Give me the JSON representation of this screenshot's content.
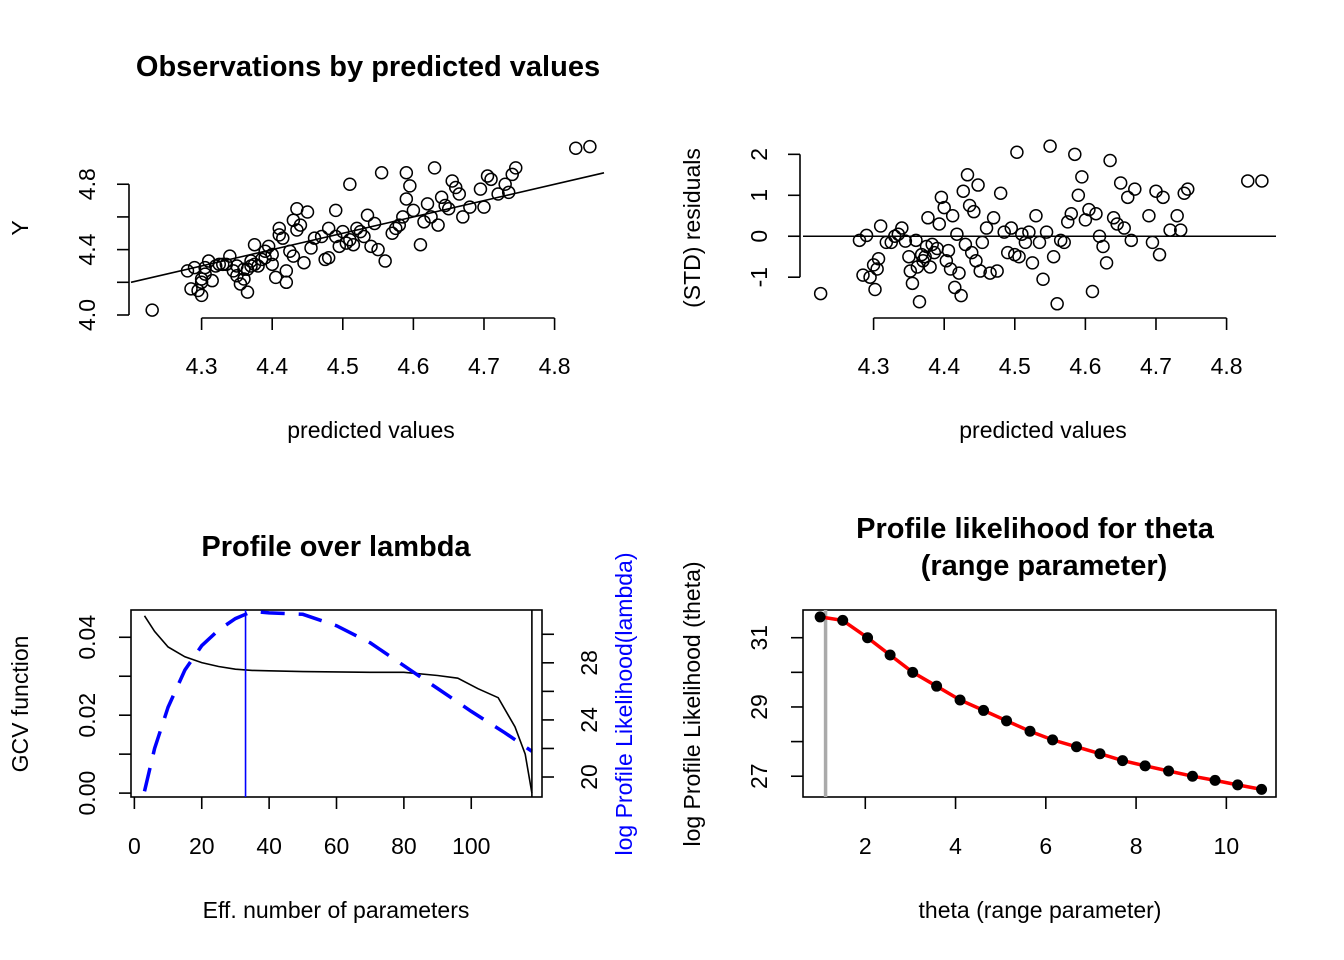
{
  "chart_data": [
    {
      "type": "scatter",
      "title": "Observations by predicted values",
      "xlabel": "predicted values",
      "ylabel": "Y",
      "xlim": [
        4.2,
        4.87
      ],
      "ylim": [
        4.0,
        5.04
      ],
      "xticks": [
        4.3,
        4.4,
        4.5,
        4.6,
        4.7,
        4.8
      ],
      "xtick_labels": [
        "4.3",
        "4.4",
        "4.5",
        "4.6",
        "4.7",
        "4.8"
      ],
      "yticks": [
        4.0,
        4.2,
        4.4,
        4.6,
        4.8
      ],
      "ytick_labels": [
        "4.0",
        "",
        "4.4",
        "",
        "4.8"
      ],
      "reference_line": {
        "type": "identity",
        "slope": 1,
        "intercept": 0
      },
      "points": [
        [
          4.23,
          4.03
        ],
        [
          4.28,
          4.27
        ],
        [
          4.285,
          4.16
        ],
        [
          4.29,
          4.29
        ],
        [
          4.295,
          4.15
        ],
        [
          4.3,
          4.12
        ],
        [
          4.3,
          4.2
        ],
        [
          4.3,
          4.22
        ],
        [
          4.305,
          4.25
        ],
        [
          4.305,
          4.29
        ],
        [
          4.31,
          4.33
        ],
        [
          4.315,
          4.21
        ],
        [
          4.32,
          4.3
        ],
        [
          4.325,
          4.31
        ],
        [
          4.33,
          4.31
        ],
        [
          4.335,
          4.31
        ],
        [
          4.34,
          4.36
        ],
        [
          4.345,
          4.27
        ],
        [
          4.35,
          4.24
        ],
        [
          4.35,
          4.3
        ],
        [
          4.355,
          4.19
        ],
        [
          4.36,
          4.22
        ],
        [
          4.36,
          4.28
        ],
        [
          4.365,
          4.14
        ],
        [
          4.365,
          4.28
        ],
        [
          4.37,
          4.3
        ],
        [
          4.37,
          4.33
        ],
        [
          4.375,
          4.31
        ],
        [
          4.375,
          4.43
        ],
        [
          4.38,
          4.3
        ],
        [
          4.385,
          4.34
        ],
        [
          4.39,
          4.35
        ],
        [
          4.39,
          4.39
        ],
        [
          4.395,
          4.42
        ],
        [
          4.4,
          4.37
        ],
        [
          4.4,
          4.31
        ],
        [
          4.405,
          4.23
        ],
        [
          4.41,
          4.53
        ],
        [
          4.41,
          4.49
        ],
        [
          4.415,
          4.47
        ],
        [
          4.42,
          4.27
        ],
        [
          4.42,
          4.2
        ],
        [
          4.425,
          4.39
        ],
        [
          4.43,
          4.58
        ],
        [
          4.43,
          4.36
        ],
        [
          4.435,
          4.52
        ],
        [
          4.435,
          4.65
        ],
        [
          4.44,
          4.55
        ],
        [
          4.445,
          4.32
        ],
        [
          4.45,
          4.63
        ],
        [
          4.455,
          4.41
        ],
        [
          4.46,
          4.47
        ],
        [
          4.47,
          4.48
        ],
        [
          4.475,
          4.34
        ],
        [
          4.48,
          4.35
        ],
        [
          4.48,
          4.53
        ],
        [
          4.49,
          4.64
        ],
        [
          4.49,
          4.48
        ],
        [
          4.495,
          4.42
        ],
        [
          4.5,
          4.51
        ],
        [
          4.505,
          4.44
        ],
        [
          4.51,
          4.46
        ],
        [
          4.51,
          4.8
        ],
        [
          4.515,
          4.43
        ],
        [
          4.52,
          4.53
        ],
        [
          4.525,
          4.51
        ],
        [
          4.53,
          4.48
        ],
        [
          4.535,
          4.61
        ],
        [
          4.54,
          4.42
        ],
        [
          4.545,
          4.56
        ],
        [
          4.55,
          4.4
        ],
        [
          4.555,
          4.87
        ],
        [
          4.56,
          4.33
        ],
        [
          4.57,
          4.5
        ],
        [
          4.575,
          4.53
        ],
        [
          4.58,
          4.55
        ],
        [
          4.585,
          4.6
        ],
        [
          4.59,
          4.71
        ],
        [
          4.59,
          4.87
        ],
        [
          4.595,
          4.79
        ],
        [
          4.6,
          4.64
        ],
        [
          4.61,
          4.43
        ],
        [
          4.615,
          4.57
        ],
        [
          4.62,
          4.68
        ],
        [
          4.625,
          4.6
        ],
        [
          4.63,
          4.9
        ],
        [
          4.635,
          4.55
        ],
        [
          4.64,
          4.72
        ],
        [
          4.645,
          4.67
        ],
        [
          4.65,
          4.65
        ],
        [
          4.655,
          4.82
        ],
        [
          4.66,
          4.78
        ],
        [
          4.665,
          4.74
        ],
        [
          4.67,
          4.6
        ],
        [
          4.68,
          4.66
        ],
        [
          4.695,
          4.77
        ],
        [
          4.7,
          4.66
        ],
        [
          4.705,
          4.85
        ],
        [
          4.71,
          4.83
        ],
        [
          4.72,
          4.74
        ],
        [
          4.73,
          4.8
        ],
        [
          4.735,
          4.75
        ],
        [
          4.74,
          4.86
        ],
        [
          4.745,
          4.9
        ],
        [
          4.83,
          5.02
        ],
        [
          4.85,
          5.03
        ]
      ]
    },
    {
      "type": "scatter",
      "title": "",
      "xlabel": "predicted values",
      "ylabel": "(STD) residuals",
      "xlim": [
        4.2,
        4.87
      ],
      "ylim": [
        -1.85,
        2.35
      ],
      "xticks": [
        4.3,
        4.4,
        4.5,
        4.6,
        4.7,
        4.8
      ],
      "xtick_labels": [
        "4.3",
        "4.4",
        "4.5",
        "4.6",
        "4.7",
        "4.8"
      ],
      "yticks": [
        -1,
        0,
        1,
        2
      ],
      "ytick_labels": [
        "-1",
        "0",
        "1",
        "2"
      ],
      "reference_line": {
        "type": "horizontal",
        "y": 0
      },
      "points": [
        [
          4.225,
          -1.4
        ],
        [
          4.28,
          -0.1
        ],
        [
          4.285,
          -0.95
        ],
        [
          4.29,
          0.02
        ],
        [
          4.295,
          -1.0
        ],
        [
          4.3,
          -0.7
        ],
        [
          4.302,
          -1.3
        ],
        [
          4.305,
          -0.8
        ],
        [
          4.307,
          -0.55
        ],
        [
          4.31,
          0.25
        ],
        [
          4.318,
          -0.15
        ],
        [
          4.325,
          -0.15
        ],
        [
          4.33,
          0.0
        ],
        [
          4.335,
          0.05
        ],
        [
          4.34,
          0.2
        ],
        [
          4.345,
          -0.12
        ],
        [
          4.35,
          -0.5
        ],
        [
          4.352,
          -0.85
        ],
        [
          4.355,
          -1.15
        ],
        [
          4.36,
          -0.1
        ],
        [
          4.362,
          -0.75
        ],
        [
          4.365,
          -1.6
        ],
        [
          4.368,
          -0.45
        ],
        [
          4.37,
          -0.6
        ],
        [
          4.373,
          -0.5
        ],
        [
          4.375,
          -0.25
        ],
        [
          4.377,
          0.45
        ],
        [
          4.38,
          -0.75
        ],
        [
          4.383,
          -0.2
        ],
        [
          4.386,
          -0.4
        ],
        [
          4.39,
          -0.3
        ],
        [
          4.393,
          0.3
        ],
        [
          4.396,
          0.95
        ],
        [
          4.4,
          0.7
        ],
        [
          4.403,
          -0.6
        ],
        [
          4.406,
          -0.35
        ],
        [
          4.409,
          -0.8
        ],
        [
          4.412,
          0.5
        ],
        [
          4.415,
          -1.25
        ],
        [
          4.418,
          0.05
        ],
        [
          4.421,
          -0.9
        ],
        [
          4.424,
          -1.45
        ],
        [
          4.427,
          1.1
        ],
        [
          4.43,
          -0.2
        ],
        [
          4.433,
          1.5
        ],
        [
          4.436,
          0.75
        ],
        [
          4.439,
          -0.4
        ],
        [
          4.442,
          0.6
        ],
        [
          4.445,
          -0.6
        ],
        [
          4.448,
          1.25
        ],
        [
          4.451,
          -0.85
        ],
        [
          4.454,
          -0.15
        ],
        [
          4.46,
          0.2
        ],
        [
          4.465,
          -0.9
        ],
        [
          4.47,
          0.45
        ],
        [
          4.475,
          -0.85
        ],
        [
          4.48,
          1.05
        ],
        [
          4.485,
          0.1
        ],
        [
          4.49,
          -0.4
        ],
        [
          4.495,
          0.2
        ],
        [
          4.5,
          -0.45
        ],
        [
          4.503,
          2.05
        ],
        [
          4.506,
          -0.5
        ],
        [
          4.51,
          0.05
        ],
        [
          4.515,
          -0.15
        ],
        [
          4.52,
          0.1
        ],
        [
          4.525,
          -0.65
        ],
        [
          4.53,
          0.5
        ],
        [
          4.535,
          -0.15
        ],
        [
          4.54,
          -1.05
        ],
        [
          4.545,
          0.1
        ],
        [
          4.55,
          2.2
        ],
        [
          4.555,
          -0.5
        ],
        [
          4.56,
          -1.65
        ],
        [
          4.565,
          -0.1
        ],
        [
          4.57,
          -0.15
        ],
        [
          4.575,
          0.35
        ],
        [
          4.58,
          0.55
        ],
        [
          4.585,
          2.0
        ],
        [
          4.59,
          1.0
        ],
        [
          4.595,
          1.45
        ],
        [
          4.6,
          0.4
        ],
        [
          4.605,
          0.65
        ],
        [
          4.61,
          -1.35
        ],
        [
          4.615,
          0.55
        ],
        [
          4.62,
          0.0
        ],
        [
          4.625,
          -0.25
        ],
        [
          4.63,
          -0.65
        ],
        [
          4.635,
          1.85
        ],
        [
          4.64,
          0.45
        ],
        [
          4.645,
          0.3
        ],
        [
          4.65,
          1.3
        ],
        [
          4.655,
          0.2
        ],
        [
          4.66,
          0.95
        ],
        [
          4.665,
          -0.1
        ],
        [
          4.67,
          1.15
        ],
        [
          4.69,
          0.5
        ],
        [
          4.695,
          -0.15
        ],
        [
          4.7,
          1.1
        ],
        [
          4.705,
          -0.45
        ],
        [
          4.71,
          0.95
        ],
        [
          4.72,
          0.15
        ],
        [
          4.73,
          0.5
        ],
        [
          4.735,
          0.15
        ],
        [
          4.74,
          1.05
        ],
        [
          4.745,
          1.15
        ],
        [
          4.83,
          1.35
        ],
        [
          4.85,
          1.35
        ]
      ]
    },
    {
      "type": "line",
      "title": "Profile over lambda",
      "xlabel": "Eff. number of parameters",
      "ylabel": "GCV function",
      "ylabel_right": "log Profile Likelihood(lambda)",
      "xlim": [
        -1,
        121
      ],
      "ylim_left": [
        -0.001,
        0.047
      ],
      "ylim_right": [
        18.6,
        31.7
      ],
      "xticks": [
        0,
        20,
        40,
        60,
        80,
        100
      ],
      "xtick_labels": [
        "0",
        "20",
        "40",
        "60",
        "80",
        "100"
      ],
      "yticks_left": [
        0.0,
        0.01,
        0.02,
        0.03,
        0.04
      ],
      "ytick_labels_left": [
        "0.00",
        "",
        "0.02",
        "",
        "0.04"
      ],
      "yticks_right": [
        20,
        22,
        24,
        26,
        28,
        30
      ],
      "ytick_labels_right": [
        "20",
        "",
        "24",
        "",
        "28",
        ""
      ],
      "vline_x": 33,
      "vline_x_right": 118,
      "series": [
        {
          "name": "",
          "axis": "left",
          "color": "#000000",
          "style": "solid",
          "x": [
            3,
            6,
            10,
            15,
            20,
            25,
            30,
            35,
            40,
            50,
            60,
            70,
            80,
            90,
            96,
            102,
            108,
            113,
            116,
            118
          ],
          "y": [
            0.0455,
            0.0415,
            0.0375,
            0.035,
            0.0335,
            0.0325,
            0.0318,
            0.0315,
            0.0314,
            0.0312,
            0.0311,
            0.031,
            0.031,
            0.0302,
            0.0295,
            0.0268,
            0.0245,
            0.017,
            0.01,
            0.0
          ]
        },
        {
          "name": "",
          "axis": "right",
          "color": "#0000FF",
          "style": "dashed",
          "x": [
            3,
            6,
            10,
            15,
            20,
            25,
            30,
            35,
            40,
            50,
            60,
            70,
            80,
            90,
            100,
            110,
            118
          ],
          "y": [
            19.0,
            22.0,
            24.9,
            27.5,
            29.2,
            30.3,
            31.1,
            31.6,
            31.5,
            31.4,
            30.6,
            29.4,
            27.8,
            26.2,
            24.6,
            23.1,
            21.8
          ]
        }
      ]
    },
    {
      "type": "line",
      "title": "Profile likelihood for theta\n(range parameter)",
      "title_lines": [
        "Profile likelihood for theta",
        "(range parameter)"
      ],
      "xlabel": "theta (range parameter)",
      "ylabel": "log Profile Likelihood (theta)",
      "xlim": [
        0.62,
        11.1
      ],
      "ylim": [
        26.4,
        31.8
      ],
      "xticks": [
        2,
        4,
        6,
        8,
        10
      ],
      "xtick_labels": [
        "2",
        "4",
        "6",
        "8",
        "10"
      ],
      "yticks": [
        27,
        28,
        29,
        30,
        31
      ],
      "ytick_labels": [
        "27",
        "",
        "29",
        "",
        "31"
      ],
      "vline_x": 1.12,
      "series": [
        {
          "name": "",
          "color": "#FF0000",
          "style": "solid",
          "x": [
            1.0,
            1.5,
            2.05,
            2.55,
            3.05,
            3.58,
            4.1,
            4.62,
            5.13,
            5.65,
            6.15,
            6.68,
            7.2,
            7.7,
            8.2,
            8.72,
            9.25,
            9.75,
            10.25,
            10.78
          ],
          "y": [
            31.6,
            31.5,
            31.0,
            30.5,
            30.0,
            29.6,
            29.2,
            28.9,
            28.6,
            28.3,
            28.05,
            27.85,
            27.65,
            27.45,
            27.3,
            27.15,
            27.0,
            26.88,
            26.75,
            26.62
          ]
        }
      ]
    }
  ]
}
